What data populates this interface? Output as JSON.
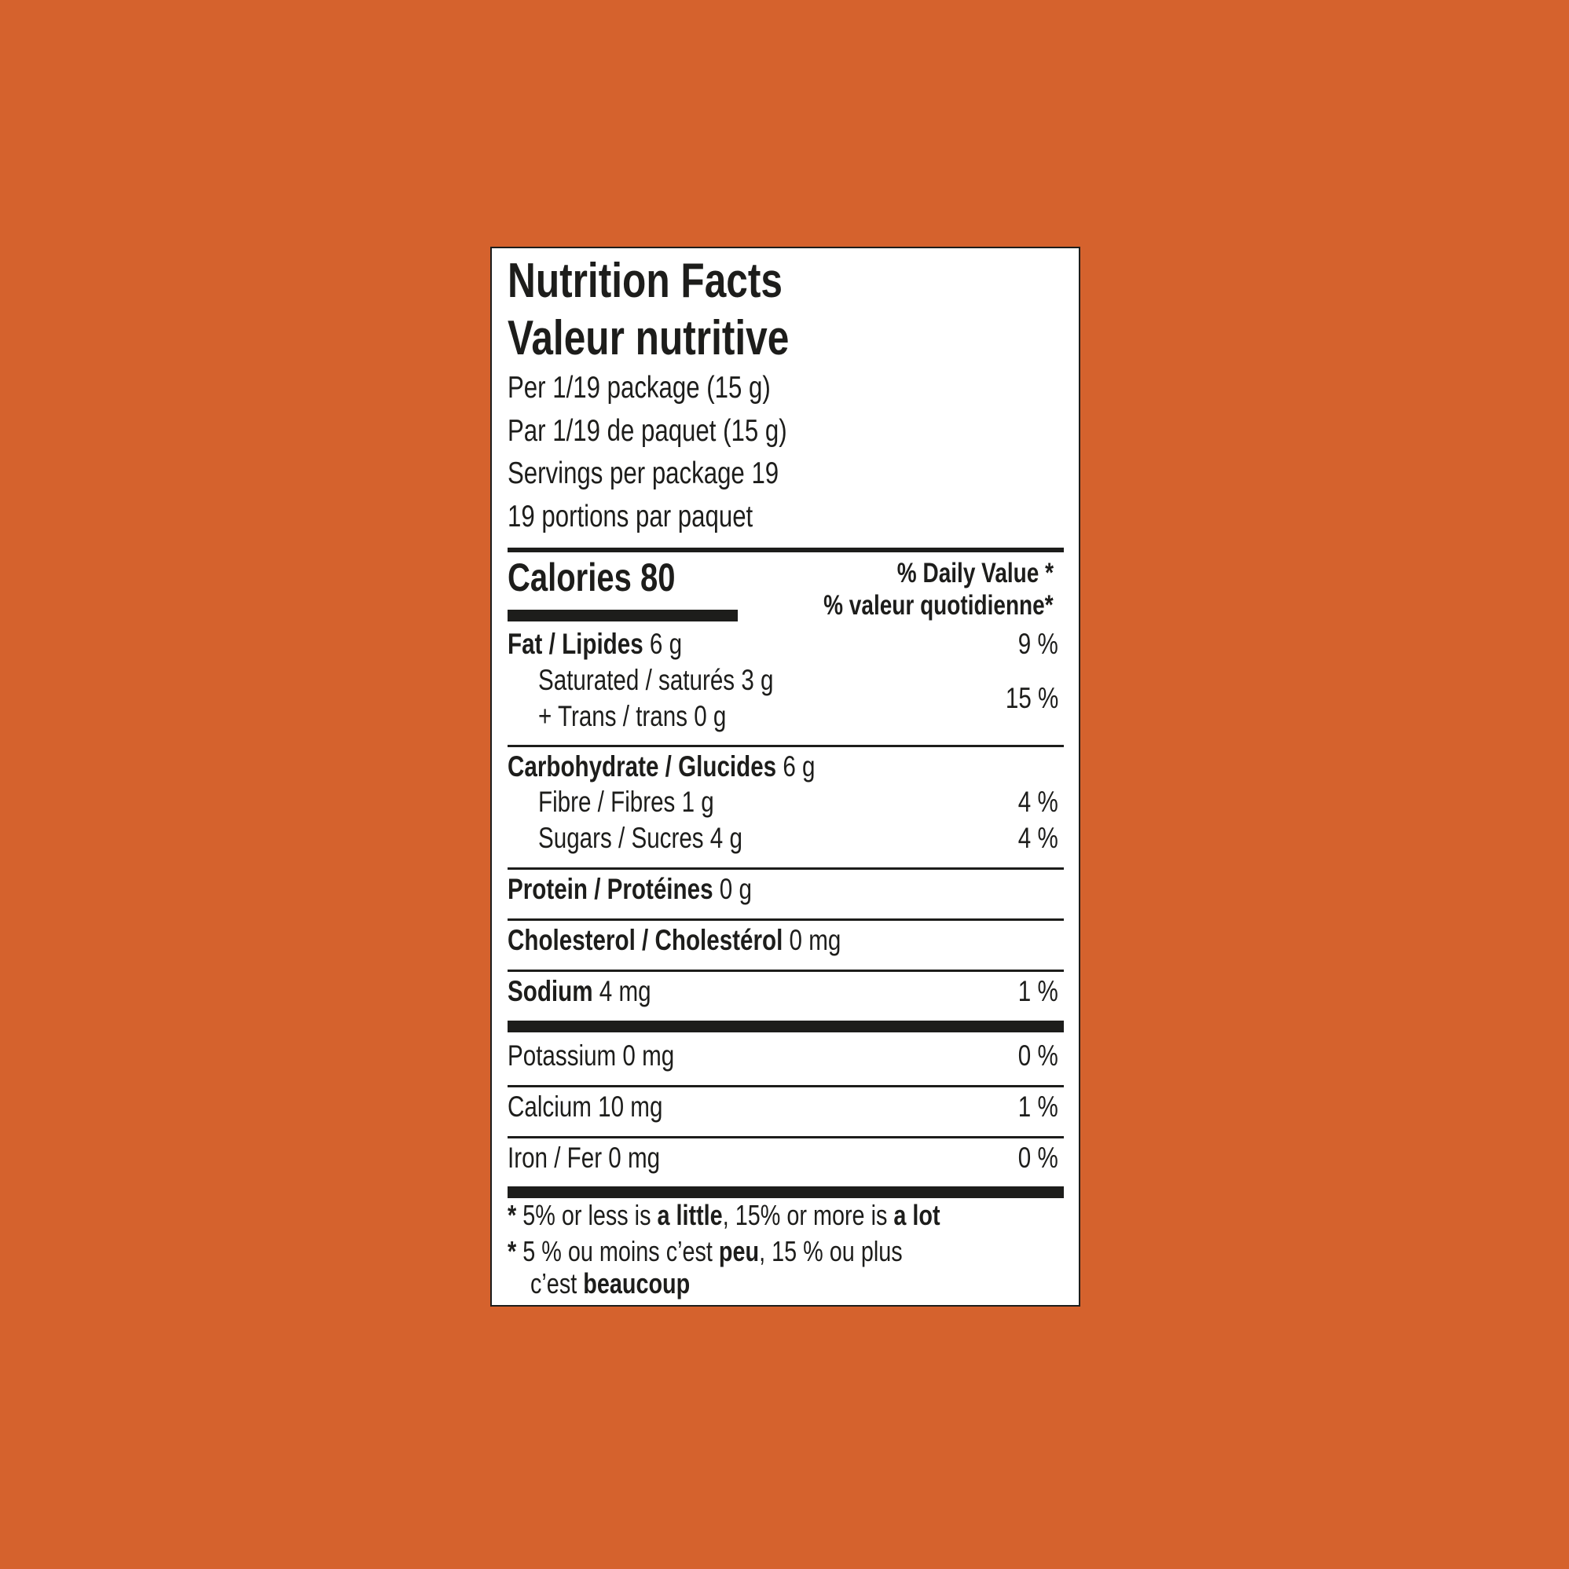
{
  "label": {
    "title_en": "Nutrition Facts",
    "title_fr": "Valeur nutritive",
    "serving_en": "Per 1/19 package (15 g)",
    "serving_fr": "Par 1/19 de paquet (15 g)",
    "servings_en": "Servings per package 19",
    "servings_fr": "19 portions par paquet",
    "calories_label": "Calories 80",
    "dv_en": "% Daily Value *",
    "dv_fr": "% valeur quotidienne*",
    "nutrients": {
      "fat": {
        "name": "Fat / Lipides",
        "amount": " 6 g",
        "dv": "9 %"
      },
      "saturated": {
        "name": "Saturated / saturés 3 g"
      },
      "trans": {
        "name": "+ Trans / trans 0 g"
      },
      "sat_trans_dv": "15 %",
      "carb": {
        "name": "Carbohydrate / Glucides",
        "amount": " 6 g"
      },
      "fibre": {
        "name": "Fibre / Fibres 1 g",
        "dv": "4 %"
      },
      "sugars": {
        "name": "Sugars / Sucres 4 g",
        "dv": "4 %"
      },
      "protein": {
        "name": "Protein / Protéines",
        "amount": " 0 g"
      },
      "cholesterol": {
        "name": "Cholesterol / Cholestérol",
        "amount": " 0 mg"
      },
      "sodium": {
        "name": "Sodium",
        "amount": " 4 mg",
        "dv": "1 %"
      },
      "potassium": {
        "name": "Potassium 0 mg",
        "dv": "0 %"
      },
      "calcium": {
        "name": "Calcium 10 mg",
        "dv": "1 %"
      },
      "iron": {
        "name": "Iron / Fer 0 mg",
        "dv": "0 %"
      }
    },
    "footnote": {
      "en_star": "* ",
      "en_1": "5% or less is ",
      "en_b1": "a little",
      "en_2": ", 15% or more is ",
      "en_b2": "a lot",
      "fr_star": "* ",
      "fr_1": "5 % ou moins c’est ",
      "fr_b1": "peu",
      "fr_2": ", 15 % ou plus",
      "fr_3": "c’est ",
      "fr_b2": "beaucoup"
    }
  },
  "colors": {
    "background": "#d5622d",
    "label": "#ffffff",
    "ink": "#1d1d1b"
  }
}
